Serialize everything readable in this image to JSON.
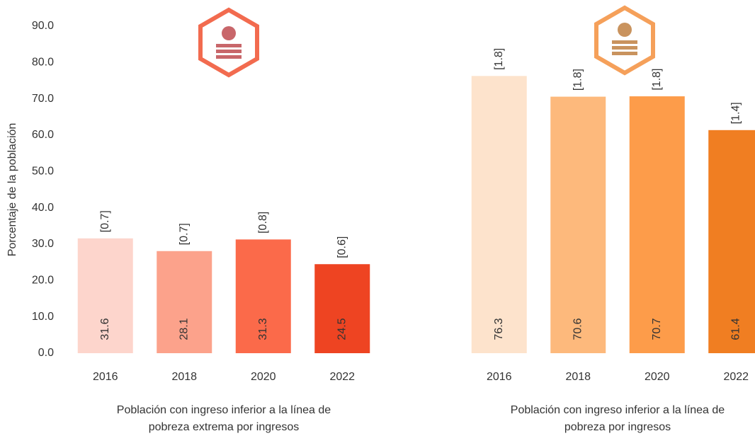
{
  "chart_data": [
    {
      "type": "bar",
      "ylabel": "Porcentaje de la población",
      "categories": [
        "2016",
        "2018",
        "2020",
        "2022"
      ],
      "values": [
        31.6,
        28.1,
        31.3,
        24.5
      ],
      "errors": [
        0.7,
        0.7,
        0.8,
        0.6
      ],
      "error_labels": [
        "[0.7]",
        "[0.7]",
        "[0.8]",
        "[0.6]"
      ],
      "colors": [
        "#fdd5cc",
        "#fca28b",
        "#fb6a4a",
        "#ee4422"
      ],
      "xlabel": [
        "Población con ingreso inferior a la línea de",
        "pobreza extrema por ingresos"
      ],
      "ylim": [
        0,
        90
      ],
      "yticks": [
        {
          "value": 0,
          "label": "0.0"
        },
        {
          "value": 10,
          "label": "10.0"
        },
        {
          "value": 20,
          "label": "20.0"
        },
        {
          "value": 30,
          "label": "30.0"
        },
        {
          "value": 40,
          "label": "40.0"
        },
        {
          "value": 50,
          "label": "50.0"
        },
        {
          "value": 60,
          "label": "60.0"
        },
        {
          "value": 70,
          "label": "70.0"
        },
        {
          "value": 80,
          "label": "80.0"
        },
        {
          "value": 90,
          "label": "90.0"
        }
      ]
    },
    {
      "type": "bar",
      "categories": [
        "2016",
        "2018",
        "2020",
        "2022"
      ],
      "values": [
        76.3,
        70.6,
        70.7,
        61.4
      ],
      "errors": [
        1.8,
        1.8,
        1.8,
        1.4
      ],
      "error_labels": [
        "[1.8]",
        "[1.8]",
        "[1.8]",
        "[1.4]"
      ],
      "colors": [
        "#fde3cc",
        "#fdb97c",
        "#fd9c4a",
        "#f07e22"
      ],
      "xlabel": [
        "Población con ingreso inferior a la línea de",
        "pobreza por ingresos"
      ],
      "ylim": [
        0,
        90
      ]
    }
  ]
}
